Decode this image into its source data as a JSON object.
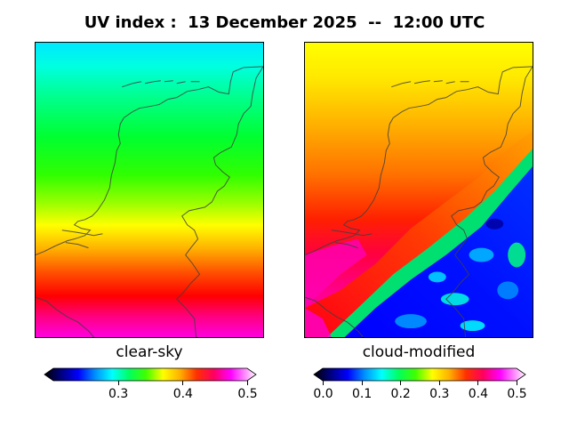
{
  "title": "UV index :  13 December 2025  --  12:00 UTC",
  "panels": {
    "left": {
      "label": "clear-sky"
    },
    "right": {
      "label": "cloud-modified"
    }
  },
  "colorbars": {
    "left": {
      "ticks": [
        "0.3",
        "0.4",
        "0.5"
      ],
      "values": [
        0.3,
        0.4,
        0.5
      ],
      "min": 0.2,
      "max": 0.5
    },
    "right": {
      "ticks": [
        "0.0",
        "0.1",
        "0.2",
        "0.3",
        "0.4",
        "0.5"
      ],
      "values": [
        0.0,
        0.1,
        0.2,
        0.3,
        0.4,
        0.5
      ],
      "min": 0.0,
      "max": 0.5
    }
  },
  "colormap": {
    "name": "gist_ncar-like",
    "stops": [
      "#000000",
      "#000080",
      "#0000ff",
      "#0090ff",
      "#00ffff",
      "#00ff80",
      "#00ff00",
      "#a0ff00",
      "#ffff00",
      "#ffb000",
      "#ff4000",
      "#ff0000",
      "#ff0080",
      "#ff00ff",
      "#ff80ff",
      "#ffffff"
    ]
  },
  "coastline_color": "#404040"
}
